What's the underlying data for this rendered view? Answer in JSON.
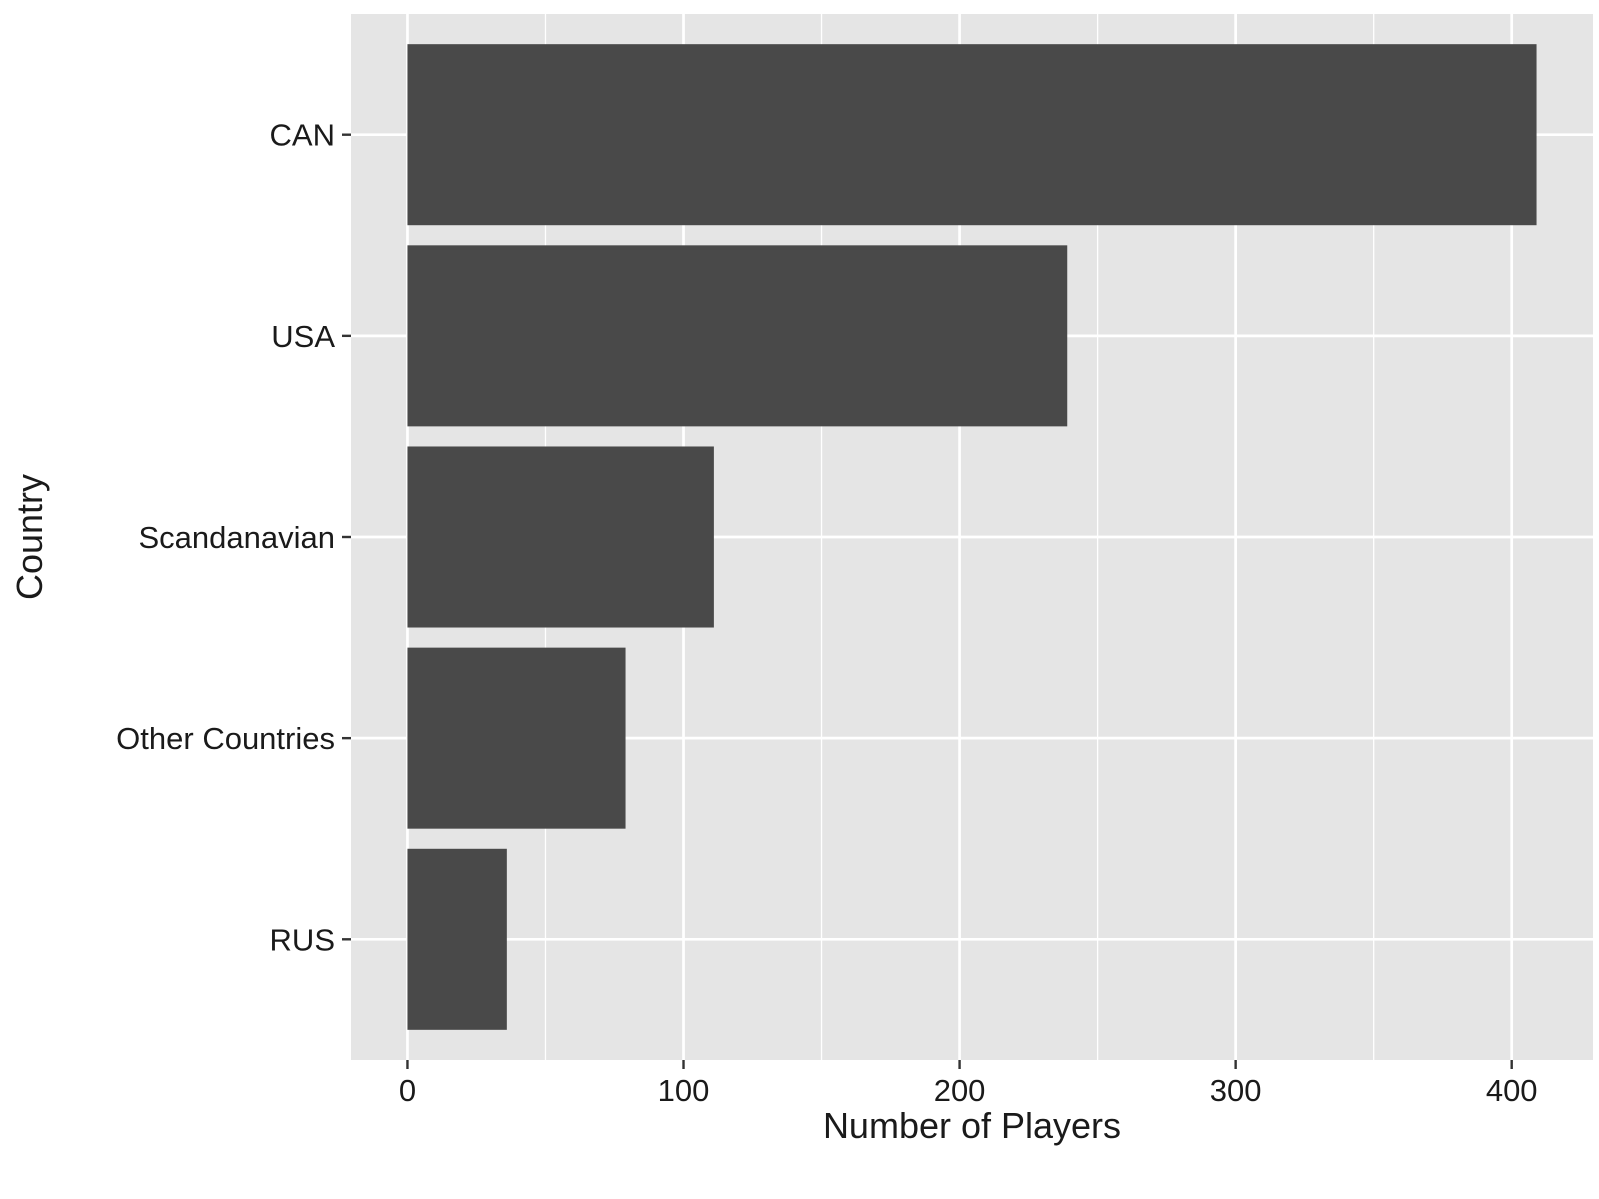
{
  "chart_data": {
    "type": "bar",
    "orientation": "horizontal",
    "categories": [
      "CAN",
      "USA",
      "Scandanavian",
      "Other Countries",
      "RUS"
    ],
    "values": [
      409,
      239,
      111,
      79,
      36
    ],
    "title": "",
    "xlabel": "Number of Players",
    "ylabel": "Country",
    "xlim": [
      -20.45,
      429.45
    ],
    "x_ticks": [
      0,
      100,
      200,
      300,
      400
    ],
    "x_tick_labels": [
      "0",
      "100",
      "200",
      "300",
      "400"
    ],
    "minor_gridlines": [
      50,
      150,
      250,
      350
    ],
    "grid": true,
    "legend": "none",
    "colors": {
      "panel_background": "#e5e5e5",
      "gridline": "#ffffff",
      "bar_fill": "#494949",
      "axis_tick": "#333333",
      "text": "#1a1a1a"
    }
  }
}
